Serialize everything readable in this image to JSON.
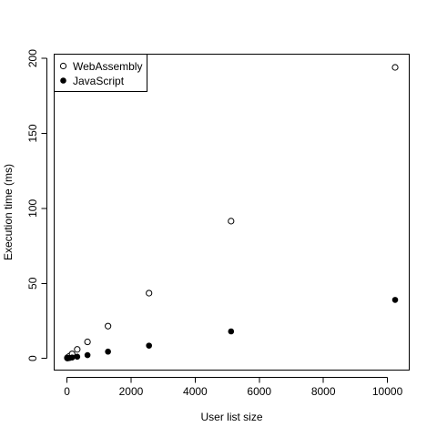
{
  "chart_data": {
    "type": "scatter",
    "title": "",
    "xlabel": "User list size",
    "ylabel": "Execution time (ms)",
    "xlim": [
      -400,
      10680
    ],
    "ylim": [
      -7.8,
      202.8
    ],
    "x_ticks": [
      0,
      2000,
      4000,
      6000,
      8000,
      10000
    ],
    "y_ticks": [
      0,
      50,
      100,
      150,
      200
    ],
    "grid": false,
    "legend_position": "top-left",
    "series": [
      {
        "name": "WebAssembly",
        "marker": "open-circle",
        "color": "#000000",
        "points": [
          {
            "x": 10,
            "y": 0.4
          },
          {
            "x": 20,
            "y": 0.5
          },
          {
            "x": 40,
            "y": 0.8
          },
          {
            "x": 80,
            "y": 1.5
          },
          {
            "x": 160,
            "y": 3.0
          },
          {
            "x": 320,
            "y": 6.0
          },
          {
            "x": 640,
            "y": 11.0
          },
          {
            "x": 1280,
            "y": 21.5
          },
          {
            "x": 2560,
            "y": 43.5
          },
          {
            "x": 5120,
            "y": 91.5
          },
          {
            "x": 10240,
            "y": 194.0
          }
        ]
      },
      {
        "name": "JavaScript",
        "marker": "filled-circle",
        "color": "#000000",
        "points": [
          {
            "x": 10,
            "y": 0.1
          },
          {
            "x": 20,
            "y": 0.1
          },
          {
            "x": 40,
            "y": 0.2
          },
          {
            "x": 80,
            "y": 0.3
          },
          {
            "x": 160,
            "y": 0.6
          },
          {
            "x": 320,
            "y": 1.1
          },
          {
            "x": 640,
            "y": 2.2
          },
          {
            "x": 1280,
            "y": 4.5
          },
          {
            "x": 2560,
            "y": 8.5
          },
          {
            "x": 5120,
            "y": 18.0
          },
          {
            "x": 10240,
            "y": 39.0
          }
        ]
      }
    ]
  }
}
